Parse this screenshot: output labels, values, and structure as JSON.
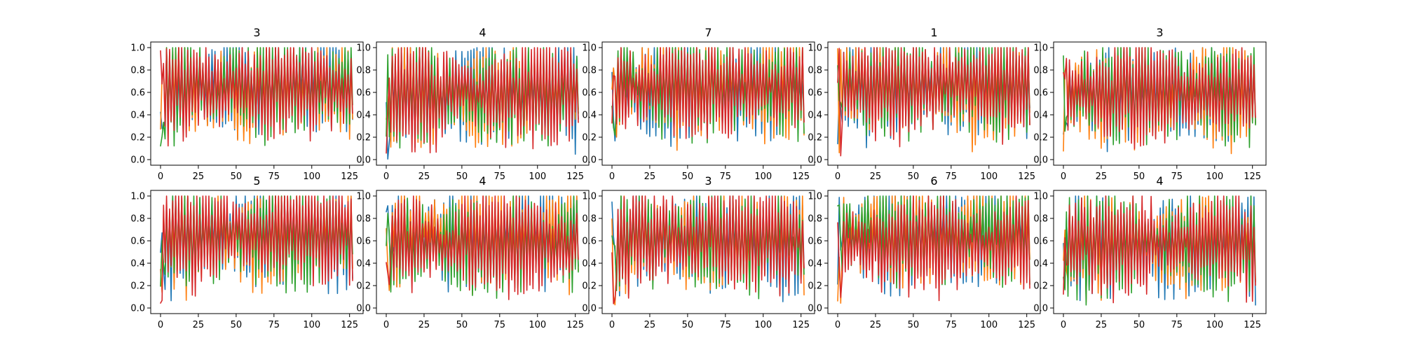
{
  "chart_data": [
    {
      "type": "line",
      "title": "3",
      "xlim": [
        0,
        127
      ],
      "ylim": [
        0,
        1
      ],
      "xticks": [
        0,
        25,
        50,
        75,
        100,
        125
      ],
      "yticks": [
        0.0,
        0.2,
        0.4,
        0.6,
        0.8,
        1.0
      ],
      "series_count": 4,
      "seed": 11
    },
    {
      "type": "line",
      "title": "4",
      "xlim": [
        0,
        127
      ],
      "ylim": [
        0,
        1
      ],
      "xticks": [
        0,
        25,
        50,
        75,
        100,
        125
      ],
      "yticks": [
        0.0,
        0.2,
        0.4,
        0.6,
        0.8,
        1.0
      ],
      "series_count": 4,
      "seed": 23
    },
    {
      "type": "line",
      "title": "7",
      "xlim": [
        0,
        127
      ],
      "ylim": [
        0,
        1
      ],
      "xticks": [
        0,
        25,
        50,
        75,
        100,
        125
      ],
      "yticks": [
        0.0,
        0.2,
        0.4,
        0.6,
        0.8,
        1.0
      ],
      "series_count": 4,
      "seed": 37
    },
    {
      "type": "line",
      "title": "1",
      "xlim": [
        0,
        127
      ],
      "ylim": [
        0,
        1
      ],
      "xticks": [
        0,
        25,
        50,
        75,
        100,
        125
      ],
      "yticks": [
        0.0,
        0.2,
        0.4,
        0.6,
        0.8,
        1.0
      ],
      "series_count": 4,
      "seed": 41
    },
    {
      "type": "line",
      "title": "3",
      "xlim": [
        0,
        127
      ],
      "ylim": [
        0,
        1
      ],
      "xticks": [
        0,
        25,
        50,
        75,
        100,
        125
      ],
      "yticks": [
        0.0,
        0.2,
        0.4,
        0.6,
        0.8,
        1.0
      ],
      "series_count": 4,
      "seed": 53
    },
    {
      "type": "line",
      "title": "5",
      "xlim": [
        0,
        127
      ],
      "ylim": [
        0,
        1
      ],
      "xticks": [
        0,
        25,
        50,
        75,
        100,
        125
      ],
      "yticks": [
        0.0,
        0.2,
        0.4,
        0.6,
        0.8,
        1.0
      ],
      "series_count": 4,
      "seed": 67
    },
    {
      "type": "line",
      "title": "4",
      "xlim": [
        0,
        127
      ],
      "ylim": [
        0,
        1
      ],
      "xticks": [
        0,
        25,
        50,
        75,
        100,
        125
      ],
      "yticks": [
        0.0,
        0.2,
        0.4,
        0.6,
        0.8,
        1.0
      ],
      "series_count": 4,
      "seed": 71
    },
    {
      "type": "line",
      "title": "3",
      "xlim": [
        0,
        127
      ],
      "ylim": [
        0,
        1
      ],
      "xticks": [
        0,
        25,
        50,
        75,
        100,
        125
      ],
      "yticks": [
        0.0,
        0.2,
        0.4,
        0.6,
        0.8,
        1.0
      ],
      "series_count": 4,
      "seed": 83
    },
    {
      "type": "line",
      "title": "6",
      "xlim": [
        0,
        127
      ],
      "ylim": [
        0,
        1
      ],
      "xticks": [
        0,
        25,
        50,
        75,
        100,
        125
      ],
      "yticks": [
        0.0,
        0.2,
        0.4,
        0.6,
        0.8,
        1.0
      ],
      "series_count": 4,
      "seed": 97
    },
    {
      "type": "line",
      "title": "4",
      "xlim": [
        0,
        127
      ],
      "ylim": [
        0,
        1
      ],
      "xticks": [
        0,
        25,
        50,
        75,
        100,
        125
      ],
      "yticks": [
        0.0,
        0.2,
        0.4,
        0.6,
        0.8,
        1.0
      ],
      "series_count": 4,
      "seed": 101
    }
  ],
  "colors": {
    "series": [
      "#1f77b4",
      "#ff7f0e",
      "#2ca02c",
      "#d62728"
    ],
    "axes": "#000000",
    "background": "#ffffff"
  },
  "grid": false,
  "layout": {
    "rows": 2,
    "cols": 5
  }
}
